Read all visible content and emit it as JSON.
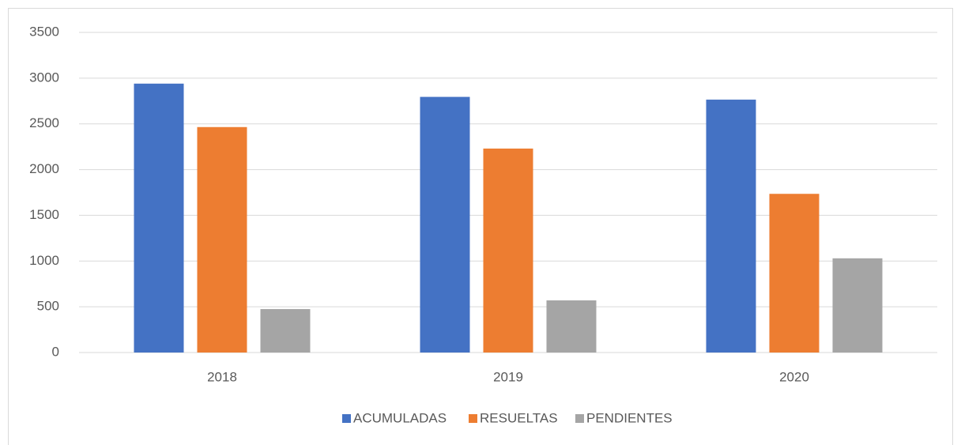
{
  "chart_data": {
    "type": "bar",
    "categories": [
      "2018",
      "2019",
      "2020"
    ],
    "series": [
      {
        "name": "ACUMULADAS",
        "color": "#4472c4",
        "values": [
          2940,
          2795,
          2765
        ]
      },
      {
        "name": "RESUELTAS",
        "color": "#ed7d31",
        "values": [
          2465,
          2230,
          1735
        ]
      },
      {
        "name": "PENDIENTES",
        "color": "#a5a5a5",
        "values": [
          475,
          570,
          1030
        ]
      }
    ],
    "ylim": [
      0,
      3500
    ],
    "yticks": [
      0,
      500,
      1000,
      1500,
      2000,
      2500,
      3000,
      3500
    ],
    "grid": true,
    "legend": "bottom"
  }
}
